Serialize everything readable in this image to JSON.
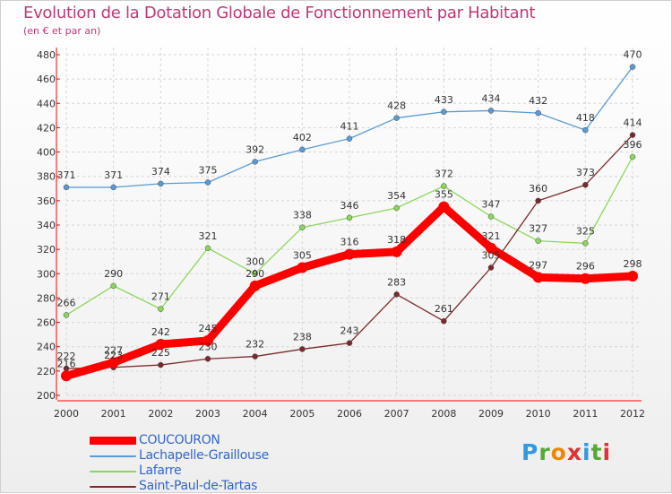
{
  "title": "Evolution de la Dotation Globale de Fonctionnement par Habitant",
  "subtitle": "(en € et par an)",
  "logo": {
    "letters": [
      "P",
      "r",
      "o",
      "x",
      "i",
      "t",
      "i"
    ],
    "colors": [
      "#3399dd",
      "#55aa33",
      "#ee8800",
      "#dd3333",
      "#3399dd",
      "#55aa33",
      "#dd3333"
    ]
  },
  "chart_data": {
    "type": "line",
    "title": "Evolution de la Dotation Globale de Fonctionnement par Habitant",
    "subtitle": "(en € et par an)",
    "x": [
      2000,
      2001,
      2002,
      2003,
      2004,
      2005,
      2006,
      2007,
      2008,
      2009,
      2010,
      2011,
      2012
    ],
    "xlabel": "",
    "ylabel": "",
    "ylim": [
      200,
      480
    ],
    "yticks": [
      200,
      220,
      240,
      260,
      280,
      300,
      320,
      340,
      360,
      380,
      400,
      420,
      440,
      460,
      480
    ],
    "grid": true,
    "series": [
      {
        "name": "Lachapelle-Graillouse",
        "color": "#5b9bd5",
        "values": [
          371,
          371,
          374,
          375,
          392,
          402,
          411,
          428,
          433,
          434,
          432,
          418,
          470
        ]
      },
      {
        "name": "Lafarre",
        "color": "#8cd65a",
        "values": [
          266,
          290,
          271,
          321,
          300,
          338,
          346,
          354,
          372,
          347,
          327,
          325,
          396
        ]
      },
      {
        "name": "Saint-Paul-de-Tartas",
        "color": "#7a2a2a",
        "values": [
          222,
          223,
          225,
          230,
          232,
          238,
          243,
          283,
          261,
          305,
          360,
          373,
          414
        ]
      },
      {
        "name": "COUCOURON",
        "color": "#ff0000",
        "values": [
          216,
          227,
          242,
          245,
          290,
          305,
          316,
          318,
          355,
          321,
          297,
          296,
          298
        ]
      }
    ],
    "legend_order": [
      "COUCOURON",
      "Lachapelle-Graillouse",
      "Lafarre",
      "Saint-Paul-de-Tartas"
    ],
    "legend_position": "bottom-left"
  }
}
